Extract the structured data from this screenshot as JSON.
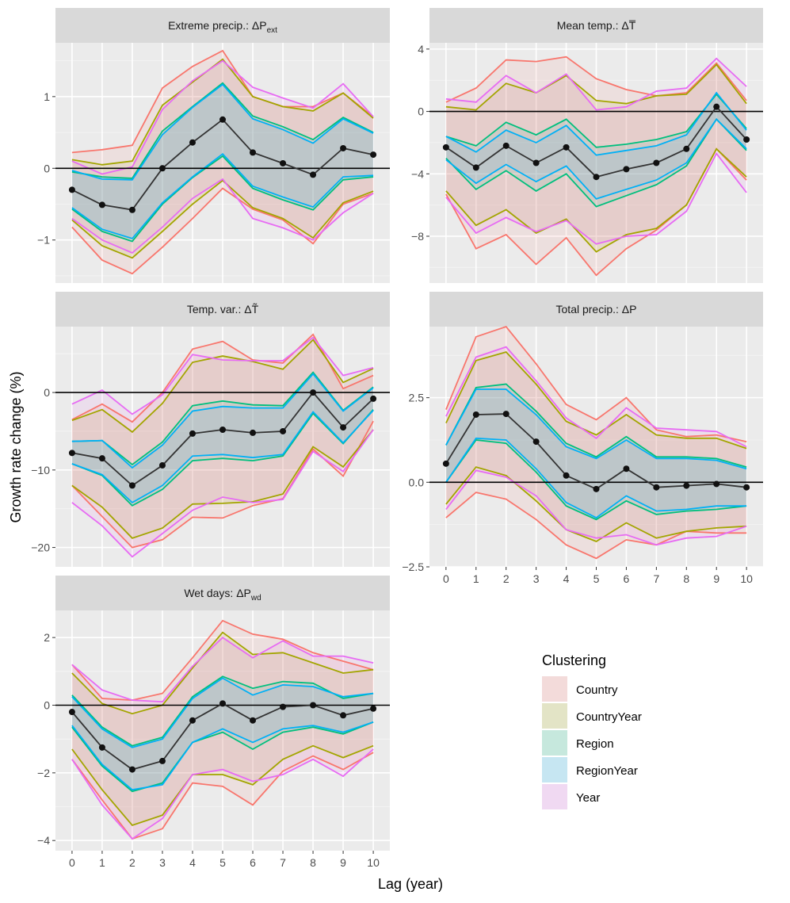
{
  "chart_data": {
    "type": "line",
    "xlabel": "Lag (year)",
    "ylabel": "Growth rate change (%)",
    "lags": [
      0,
      1,
      2,
      3,
      4,
      5,
      6,
      7,
      8,
      9,
      10
    ],
    "x_ticks": [
      "0",
      "1",
      "2",
      "3",
      "4",
      "5",
      "6",
      "7",
      "8",
      "9",
      "10"
    ],
    "legend": {
      "title": "Clustering",
      "entries": [
        {
          "name": "Country",
          "color": "#F8766D"
        },
        {
          "name": "CountryYear",
          "color": "#A3A500"
        },
        {
          "name": "Region",
          "color": "#00BF7D"
        },
        {
          "name": "RegionYear",
          "color": "#00B0F6"
        },
        {
          "name": "Year",
          "color": "#E76BF3"
        }
      ]
    },
    "panels": [
      {
        "id": "extreme-precip",
        "title_main": "Extreme precip.: ΔP",
        "title_sub": "ext",
        "ylim": [
          -1.6,
          1.75
        ],
        "y_ticks": [
          {
            "v": -1,
            "label": "−1"
          },
          {
            "v": 0,
            "label": "0"
          },
          {
            "v": 1,
            "label": "1"
          }
        ],
        "estimate": [
          -0.3,
          -0.51,
          -0.58,
          0.0,
          0.36,
          0.68,
          0.22,
          0.07,
          -0.09,
          0.28,
          0.19
        ],
        "bands": [
          {
            "name": "Country",
            "upper": [
              0.22,
              0.26,
              0.32,
              1.12,
              1.42,
              1.64,
              1.0,
              0.86,
              0.86,
              1.05,
              0.72
            ],
            "lower": [
              -0.82,
              -1.28,
              -1.47,
              -1.1,
              -0.7,
              -0.28,
              -0.57,
              -0.72,
              -1.05,
              -0.5,
              -0.35
            ]
          },
          {
            "name": "CountryYear",
            "upper": [
              0.12,
              0.05,
              0.1,
              0.88,
              1.2,
              1.52,
              1.0,
              0.86,
              0.8,
              1.05,
              0.7
            ],
            "lower": [
              -0.72,
              -1.08,
              -1.25,
              -0.88,
              -0.5,
              -0.17,
              -0.55,
              -0.7,
              -0.97,
              -0.48,
              -0.32
            ]
          },
          {
            "name": "Region",
            "upper": [
              -0.05,
              -0.12,
              -0.14,
              0.52,
              0.86,
              1.19,
              0.73,
              0.58,
              0.4,
              0.71,
              0.5
            ],
            "lower": [
              -0.57,
              -0.88,
              -1.02,
              -0.5,
              -0.13,
              0.17,
              -0.28,
              -0.44,
              -0.58,
              -0.16,
              -0.12
            ]
          },
          {
            "name": "RegionYear",
            "upper": [
              -0.03,
              -0.15,
              -0.16,
              0.47,
              0.85,
              1.17,
              0.69,
              0.54,
              0.35,
              0.69,
              0.49
            ],
            "lower": [
              -0.55,
              -0.85,
              -0.98,
              -0.48,
              -0.12,
              0.2,
              -0.25,
              -0.4,
              -0.54,
              -0.12,
              -0.1
            ]
          },
          {
            "name": "Year",
            "upper": [
              0.1,
              -0.08,
              0.02,
              0.82,
              1.22,
              1.5,
              1.13,
              0.98,
              0.84,
              1.18,
              0.72
            ],
            "lower": [
              -0.7,
              -1.0,
              -1.18,
              -0.82,
              -0.42,
              -0.15,
              -0.7,
              -0.83,
              -1.0,
              -0.62,
              -0.35
            ]
          }
        ]
      },
      {
        "id": "mean-temp",
        "title_main": "Mean temp.: ΔT̅",
        "title_sub": "",
        "ylim": [
          -11,
          4.4
        ],
        "y_ticks": [
          {
            "v": -8,
            "label": "−8"
          },
          {
            "v": -4,
            "label": "−4"
          },
          {
            "v": 0,
            "label": "0"
          },
          {
            "v": 4,
            "label": "4"
          }
        ],
        "estimate": [
          -2.3,
          -3.6,
          -2.2,
          -3.3,
          -2.3,
          -4.2,
          -3.7,
          -3.3,
          -2.4,
          0.3,
          -1.8
        ],
        "bands": [
          {
            "name": "Country",
            "upper": [
              0.6,
              1.5,
              3.3,
              3.2,
              3.5,
              2.1,
              1.4,
              1.0,
              1.2,
              3.1,
              0.7
            ],
            "lower": [
              -5.3,
              -8.8,
              -7.9,
              -9.8,
              -8.1,
              -10.5,
              -8.8,
              -7.6,
              -6.0,
              -2.4,
              -4.4
            ]
          },
          {
            "name": "CountryYear",
            "upper": [
              0.3,
              0.1,
              1.8,
              1.2,
              2.3,
              0.7,
              0.5,
              1.0,
              1.1,
              3.0,
              0.5
            ],
            "lower": [
              -5.1,
              -7.3,
              -6.3,
              -7.8,
              -6.9,
              -9.0,
              -7.9,
              -7.5,
              -6.0,
              -2.4,
              -4.2
            ]
          },
          {
            "name": "Region",
            "upper": [
              -1.6,
              -2.2,
              -0.7,
              -1.5,
              -0.5,
              -2.3,
              -2.1,
              -1.8,
              -1.3,
              1.1,
              -1.1
            ],
            "lower": [
              -3.0,
              -5.0,
              -3.8,
              -5.1,
              -4.0,
              -6.1,
              -5.4,
              -4.7,
              -3.5,
              -0.5,
              -2.5
            ]
          },
          {
            "name": "RegionYear",
            "upper": [
              -1.6,
              -2.6,
              -1.2,
              -2.0,
              -0.9,
              -2.8,
              -2.5,
              -2.2,
              -1.5,
              1.2,
              -1.2
            ],
            "lower": [
              -3.1,
              -4.6,
              -3.4,
              -4.5,
              -3.5,
              -5.6,
              -5.0,
              -4.4,
              -3.3,
              -0.5,
              -2.4
            ]
          },
          {
            "name": "Year",
            "upper": [
              0.8,
              0.6,
              2.3,
              1.2,
              2.4,
              0.1,
              0.3,
              1.3,
              1.5,
              3.4,
              1.6
            ],
            "lower": [
              -5.5,
              -7.8,
              -6.8,
              -7.7,
              -7.0,
              -8.5,
              -8.0,
              -7.9,
              -6.4,
              -2.7,
              -5.2
            ]
          }
        ]
      },
      {
        "id": "temp-var",
        "title_main": "Temp. var.: ΔT̃",
        "title_sub": "",
        "ylim": [
          -22.5,
          8.5
        ],
        "y_ticks": [
          {
            "v": -20,
            "label": "−20"
          },
          {
            "v": -10,
            "label": "−10"
          },
          {
            "v": 0,
            "label": "0"
          }
        ],
        "estimate": [
          -7.8,
          -8.5,
          -12.0,
          -9.4,
          -5.3,
          -4.8,
          -5.2,
          -5.0,
          0.0,
          -4.5,
          -0.8
        ],
        "bands": [
          {
            "name": "Country",
            "upper": [
              -3.5,
              -1.5,
              -3.8,
              0.0,
              5.6,
              6.6,
              4.2,
              3.8,
              7.5,
              0.5,
              2.2
            ],
            "lower": [
              -12.0,
              -16.0,
              -20.0,
              -19.0,
              -16.1,
              -16.2,
              -14.6,
              -13.7,
              -7.3,
              -10.8,
              -3.7
            ]
          },
          {
            "name": "CountryYear",
            "upper": [
              -3.6,
              -2.2,
              -5.1,
              -1.4,
              3.9,
              4.7,
              4.0,
              3.0,
              6.8,
              1.3,
              3.1
            ],
            "lower": [
              -12.0,
              -14.8,
              -18.8,
              -17.5,
              -14.4,
              -14.3,
              -14.1,
              -13.1,
              -7.0,
              -9.6,
              -4.8
            ]
          },
          {
            "name": "Region",
            "upper": [
              -6.3,
              -6.2,
              -9.3,
              -6.4,
              -1.7,
              -1.1,
              -1.6,
              -1.7,
              2.6,
              -2.3,
              0.7
            ],
            "lower": [
              -9.2,
              -10.7,
              -14.6,
              -12.5,
              -8.8,
              -8.5,
              -8.8,
              -8.2,
              -2.7,
              -6.6,
              -2.2
            ]
          },
          {
            "name": "RegionYear",
            "upper": [
              -6.3,
              -6.2,
              -9.7,
              -6.8,
              -2.4,
              -1.8,
              -2.0,
              -2.0,
              2.4,
              -2.4,
              0.6
            ],
            "lower": [
              -9.2,
              -10.6,
              -14.2,
              -12.0,
              -8.2,
              -8.0,
              -8.4,
              -8.0,
              -2.5,
              -6.5,
              -2.3
            ]
          },
          {
            "name": "Year",
            "upper": [
              -1.5,
              0.3,
              -2.8,
              -0.3,
              4.9,
              4.2,
              4.1,
              4.1,
              7.1,
              2.2,
              3.2
            ],
            "lower": [
              -14.2,
              -17.2,
              -21.2,
              -18.2,
              -15.2,
              -13.5,
              -14.2,
              -13.8,
              -7.6,
              -10.2,
              -4.8
            ]
          }
        ]
      },
      {
        "id": "total-precip",
        "title_main": "Total precip.: ΔP",
        "title_sub": "",
        "ylim": [
          -2.5,
          4.6
        ],
        "y_ticks": [
          {
            "v": -2.5,
            "label": "−2.5"
          },
          {
            "v": 0,
            "label": "0.0"
          },
          {
            "v": 2.5,
            "label": "2.5"
          }
        ],
        "estimate": [
          0.55,
          2.0,
          2.02,
          1.2,
          0.2,
          -0.2,
          0.4,
          -0.15,
          -0.1,
          -0.05,
          -0.15
        ],
        "bands": [
          {
            "name": "Country",
            "upper": [
              2.15,
              4.3,
              4.6,
              3.5,
              2.3,
              1.85,
              2.5,
              1.55,
              1.35,
              1.4,
              1.2
            ],
            "lower": [
              -1.05,
              -0.3,
              -0.5,
              -1.1,
              -1.85,
              -2.25,
              -1.7,
              -1.85,
              -1.45,
              -1.5,
              -1.5
            ]
          },
          {
            "name": "CountryYear",
            "upper": [
              1.75,
              3.6,
              3.85,
              2.9,
              1.8,
              1.4,
              2.0,
              1.4,
              1.3,
              1.3,
              1.0
            ],
            "lower": [
              -0.65,
              0.45,
              0.2,
              -0.55,
              -1.4,
              -1.75,
              -1.2,
              -1.65,
              -1.45,
              -1.35,
              -1.3
            ]
          },
          {
            "name": "Region",
            "upper": [
              1.1,
              2.8,
              2.9,
              2.1,
              1.15,
              0.75,
              1.35,
              0.75,
              0.75,
              0.7,
              0.45
            ],
            "lower": [
              0.0,
              1.25,
              1.15,
              0.3,
              -0.7,
              -1.1,
              -0.55,
              -0.95,
              -0.85,
              -0.8,
              -0.7
            ]
          },
          {
            "name": "RegionYear",
            "upper": [
              1.1,
              2.75,
              2.75,
              2.0,
              1.05,
              0.7,
              1.25,
              0.7,
              0.7,
              0.65,
              0.4
            ],
            "lower": [
              0.0,
              1.3,
              1.25,
              0.4,
              -0.6,
              -1.05,
              -0.4,
              -0.85,
              -0.8,
              -0.7,
              -0.7
            ]
          },
          {
            "name": "Year",
            "upper": [
              1.95,
              3.7,
              4.0,
              3.0,
              1.9,
              1.3,
              2.2,
              1.6,
              1.55,
              1.5,
              1.05
            ],
            "lower": [
              -0.8,
              0.35,
              0.15,
              -0.4,
              -1.4,
              -1.65,
              -1.55,
              -1.85,
              -1.65,
              -1.6,
              -1.3
            ]
          }
        ]
      },
      {
        "id": "wet-days",
        "title_main": "Wet days: ΔP",
        "title_sub": "wd",
        "ylim": [
          -4.3,
          2.8
        ],
        "y_ticks": [
          {
            "v": -4,
            "label": "−4"
          },
          {
            "v": -2,
            "label": "−2"
          },
          {
            "v": 0,
            "label": "0"
          },
          {
            "v": 2,
            "label": "2"
          }
        ],
        "estimate": [
          -0.2,
          -1.25,
          -1.9,
          -1.65,
          -0.45,
          0.05,
          -0.45,
          -0.05,
          0.0,
          -0.3,
          -0.1
        ],
        "bands": [
          {
            "name": "Country",
            "upper": [
              1.2,
              0.2,
              0.15,
              0.35,
              1.4,
              2.5,
              2.1,
              1.95,
              1.55,
              1.3,
              1.05
            ],
            "lower": [
              -1.6,
              -2.8,
              -3.95,
              -3.65,
              -2.3,
              -2.4,
              -2.95,
              -1.95,
              -1.5,
              -1.9,
              -1.4
            ]
          },
          {
            "name": "CountryYear",
            "upper": [
              0.95,
              0.05,
              -0.25,
              0.0,
              1.1,
              2.15,
              1.5,
              1.55,
              1.25,
              0.95,
              1.05
            ],
            "lower": [
              -1.3,
              -2.5,
              -3.55,
              -3.25,
              -2.05,
              -2.05,
              -2.35,
              -1.6,
              -1.2,
              -1.55,
              -1.2
            ]
          },
          {
            "name": "Region",
            "upper": [
              0.3,
              -0.65,
              -1.2,
              -0.95,
              0.25,
              0.85,
              0.5,
              0.7,
              0.65,
              0.2,
              0.35
            ],
            "lower": [
              -0.65,
              -1.8,
              -2.55,
              -2.3,
              -1.1,
              -0.8,
              -1.3,
              -0.8,
              -0.65,
              -0.85,
              -0.5
            ]
          },
          {
            "name": "RegionYear",
            "upper": [
              0.25,
              -0.7,
              -1.25,
              -1.0,
              0.2,
              0.8,
              0.3,
              0.6,
              0.55,
              0.25,
              0.35
            ],
            "lower": [
              -0.6,
              -1.75,
              -2.5,
              -2.35,
              -1.1,
              -0.7,
              -1.1,
              -0.7,
              -0.6,
              -0.8,
              -0.5
            ]
          },
          {
            "name": "Year",
            "upper": [
              1.2,
              0.45,
              0.15,
              0.1,
              1.15,
              2.0,
              1.4,
              1.9,
              1.45,
              1.45,
              1.25
            ],
            "lower": [
              -1.6,
              -2.95,
              -3.95,
              -3.35,
              -2.05,
              -1.9,
              -2.25,
              -2.05,
              -1.6,
              -2.1,
              -1.3
            ]
          }
        ]
      }
    ]
  }
}
